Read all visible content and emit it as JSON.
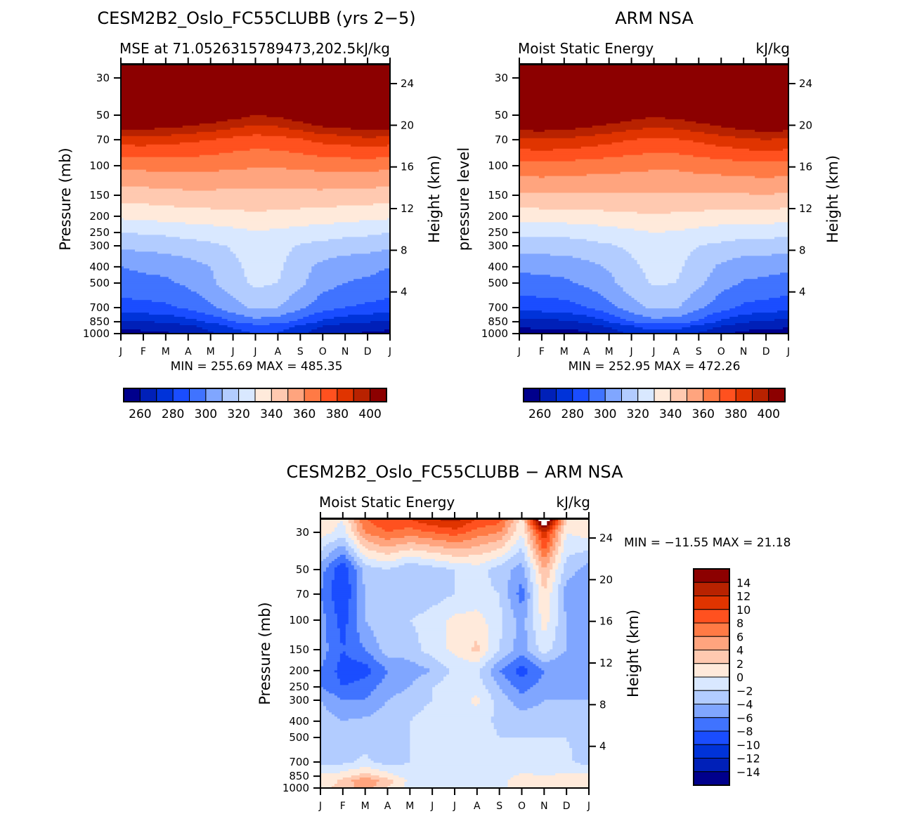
{
  "chart_data": [
    {
      "id": "model",
      "type": "heatmap",
      "title": "CESM2B2_Oslo_FC55CLUBB (yrs 2−5)",
      "subtitle_left": "MSE at 71.0526315789473,202.5",
      "subtitle_right": "kJ/kg",
      "ylabel": "Pressure (mb)",
      "ylabel_right": "Height (km)",
      "x_ticks": [
        "J",
        "F",
        "M",
        "A",
        "M",
        "J",
        "J",
        "A",
        "S",
        "O",
        "N",
        "D",
        "J"
      ],
      "y_ticks": [
        30,
        50,
        70,
        100,
        150,
        200,
        250,
        300,
        400,
        500,
        700,
        850,
        1000
      ],
      "y_right_ticks": [
        24,
        20,
        16,
        12,
        8,
        4
      ],
      "ylim_mb": [
        1000,
        25
      ],
      "stats": "MIN = 255.69 MAX = 485.35",
      "colorbar": {
        "orientation": "horizontal",
        "labels": [
          "260",
          "280",
          "300",
          "320",
          "340",
          "360",
          "380",
          "400"
        ],
        "levels": [
          260,
          270,
          280,
          290,
          300,
          310,
          320,
          330,
          340,
          350,
          360,
          370,
          380,
          390,
          400
        ]
      },
      "levels_mb": [
        1000,
        900,
        850,
        700,
        500,
        400,
        300,
        250,
        200,
        150,
        100,
        70,
        50,
        30,
        25
      ],
      "values": [
        [
          258,
          262,
          268,
          286,
          296,
          300,
          312,
          320,
          332,
          344,
          362,
          385,
          420,
          470,
          480
        ],
        [
          258,
          263,
          270,
          287,
          297,
          302,
          313,
          321,
          333,
          345,
          363,
          385,
          420,
          470,
          480
        ],
        [
          259,
          264,
          271,
          288,
          298,
          303,
          314,
          322,
          334,
          346,
          364,
          384,
          418,
          468,
          478
        ],
        [
          262,
          268,
          276,
          292,
          302,
          306,
          316,
          324,
          335,
          347,
          364,
          382,
          414,
          466,
          476
        ],
        [
          268,
          274,
          282,
          298,
          308,
          310,
          318,
          325,
          336,
          347,
          363,
          380,
          410,
          462,
          474
        ],
        [
          276,
          282,
          290,
          306,
          316,
          318,
          321,
          327,
          337,
          347,
          362,
          377,
          405,
          458,
          472
        ],
        [
          280,
          287,
          296,
          312,
          322,
          323,
          324,
          329,
          338,
          347,
          361,
          375,
          400,
          455,
          470
        ],
        [
          279,
          286,
          294,
          310,
          320,
          322,
          323,
          328,
          337,
          347,
          361,
          376,
          402,
          456,
          470
        ],
        [
          272,
          278,
          287,
          302,
          312,
          314,
          319,
          326,
          336,
          347,
          362,
          379,
          408,
          460,
          472
        ],
        [
          264,
          270,
          278,
          294,
          304,
          307,
          317,
          325,
          335,
          347,
          363,
          383,
          415,
          465,
          476
        ],
        [
          260,
          266,
          273,
          290,
          300,
          304,
          315,
          323,
          334,
          346,
          364,
          384,
          418,
          468,
          478
        ],
        [
          259,
          264,
          271,
          288,
          298,
          303,
          314,
          322,
          333,
          346,
          364,
          387,
          422,
          470,
          480
        ],
        [
          258,
          262,
          268,
          286,
          296,
          300,
          312,
          320,
          332,
          344,
          362,
          385,
          420,
          470,
          480
        ]
      ]
    },
    {
      "id": "obs",
      "type": "heatmap",
      "title": "ARM NSA",
      "subtitle_left": "Moist Static Energy",
      "subtitle_right": "kJ/kg",
      "ylabel": "pressure level",
      "ylabel_right": "Height (km)",
      "x_ticks": [
        "J",
        "F",
        "M",
        "A",
        "M",
        "J",
        "J",
        "A",
        "S",
        "O",
        "N",
        "D",
        "J"
      ],
      "y_ticks": [
        30,
        50,
        70,
        100,
        150,
        200,
        250,
        300,
        400,
        500,
        700,
        850,
        1000
      ],
      "y_right_ticks": [
        24,
        20,
        16,
        12,
        8,
        4
      ],
      "ylim_mb": [
        1000,
        25
      ],
      "stats": "MIN = 252.95 MAX = 472.26",
      "colorbar": {
        "orientation": "horizontal",
        "labels": [
          "260",
          "280",
          "300",
          "320",
          "340",
          "360",
          "380",
          "400"
        ],
        "levels": [
          260,
          270,
          280,
          290,
          300,
          310,
          320,
          330,
          340,
          350,
          360,
          370,
          380,
          390,
          400
        ]
      },
      "levels_mb": [
        1000,
        900,
        850,
        700,
        500,
        400,
        300,
        250,
        200,
        150,
        100,
        70,
        50,
        30,
        25
      ],
      "values": [
        [
          254,
          262,
          266,
          284,
          296,
          302,
          314,
          322,
          334,
          348,
          366,
          388,
          420,
          465,
          472
        ],
        [
          255,
          263,
          267,
          285,
          297,
          303,
          315,
          323,
          335,
          349,
          367,
          389,
          420,
          465,
          472
        ],
        [
          255,
          263,
          268,
          286,
          298,
          304,
          315,
          323,
          335,
          349,
          366,
          388,
          418,
          463,
          470
        ],
        [
          258,
          266,
          272,
          290,
          302,
          307,
          317,
          324,
          336,
          349,
          365,
          386,
          414,
          460,
          468
        ],
        [
          264,
          272,
          280,
          297,
          307,
          311,
          319,
          326,
          337,
          349,
          364,
          383,
          410,
          458,
          466
        ],
        [
          272,
          280,
          290,
          306,
          316,
          318,
          322,
          328,
          338,
          349,
          363,
          380,
          405,
          455,
          464
        ],
        [
          276,
          285,
          296,
          312,
          321,
          323,
          325,
          330,
          339,
          349,
          362,
          378,
          402,
          453,
          462
        ],
        [
          276,
          285,
          295,
          311,
          320,
          322,
          324,
          329,
          338,
          349,
          362,
          379,
          404,
          454,
          463
        ],
        [
          269,
          278,
          288,
          302,
          312,
          315,
          320,
          327,
          337,
          349,
          364,
          382,
          408,
          457,
          465
        ],
        [
          262,
          270,
          278,
          294,
          304,
          308,
          318,
          325,
          336,
          349,
          365,
          385,
          413,
          461,
          468
        ],
        [
          257,
          265,
          271,
          288,
          299,
          304,
          316,
          324,
          335,
          349,
          366,
          388,
          418,
          464,
          471
        ],
        [
          256,
          264,
          269,
          286,
          298,
          303,
          316,
          324,
          336,
          350,
          367,
          390,
          421,
          466,
          472
        ],
        [
          254,
          262,
          266,
          284,
          296,
          302,
          314,
          322,
          334,
          348,
          366,
          388,
          420,
          465,
          472
        ]
      ]
    },
    {
      "id": "diff",
      "type": "heatmap",
      "title": "CESM2B2_Oslo_FC55CLUBB − ARM NSA",
      "subtitle_left": "Moist Static Energy",
      "subtitle_right": "kJ/kg",
      "ylabel": "Pressure (mb)",
      "ylabel_right": "Height (km)",
      "x_ticks": [
        "J",
        "F",
        "M",
        "A",
        "M",
        "J",
        "J",
        "A",
        "S",
        "O",
        "N",
        "D",
        "J"
      ],
      "y_ticks": [
        30,
        50,
        70,
        100,
        150,
        200,
        250,
        300,
        400,
        500,
        700,
        850,
        1000
      ],
      "y_right_ticks": [
        24,
        20,
        16,
        12,
        8,
        4
      ],
      "ylim_mb": [
        1000,
        25
      ],
      "stats": "MIN = −11.55 MAX =  21.18",
      "colorbar": {
        "orientation": "vertical",
        "labels": [
          "14",
          "12",
          "10",
          "8",
          "6",
          "4",
          "2",
          "0",
          "−2",
          "−4",
          "−6",
          "−8",
          "−10",
          "−12",
          "−14"
        ],
        "levels": [
          -14,
          -12,
          -10,
          -8,
          -6,
          -4,
          -2,
          0,
          2,
          4,
          6,
          8,
          10,
          12,
          14
        ]
      },
      "levels_mb": [
        1000,
        900,
        850,
        700,
        500,
        400,
        300,
        250,
        200,
        150,
        100,
        70,
        50,
        30,
        25
      ],
      "values": [
        [
          1,
          0,
          0.5,
          -3,
          -3,
          -3,
          -4,
          -6,
          -6,
          -5,
          -5,
          -6,
          -5,
          1,
          2
        ],
        [
          3,
          2.5,
          1,
          -2.5,
          -3,
          -4,
          -6,
          -8,
          -9,
          -8,
          -9,
          -10,
          -10,
          -1,
          0
        ],
        [
          5,
          6,
          3,
          -1.5,
          -3,
          -3.5,
          -6,
          -7,
          -9,
          -6,
          -4,
          -4,
          -3,
          6,
          8
        ],
        [
          2,
          3,
          1,
          -3,
          -3.5,
          -3,
          -4,
          -5,
          -6,
          -3,
          -2,
          -2,
          -2,
          8,
          10
        ],
        [
          -1,
          -0.5,
          -1,
          -2,
          -2,
          -2,
          -3,
          -4,
          -5,
          -3,
          -2,
          -4,
          -4,
          7,
          10
        ],
        [
          -1.5,
          -1.5,
          -2,
          -1.5,
          -1,
          -1,
          -2,
          -2,
          -4,
          -1,
          -1,
          -3,
          -3,
          8,
          12
        ],
        [
          -2,
          -2,
          -2,
          -1,
          -1,
          -1.5,
          -1,
          -0.5,
          -1.5,
          0.5,
          0.5,
          -2,
          -2,
          9,
          13
        ],
        [
          -2,
          -2,
          -1.5,
          -1,
          -1,
          -1,
          0.5,
          -1,
          -1.5,
          2.5,
          1,
          -1.5,
          -1,
          7,
          10
        ],
        [
          -1,
          -1,
          -1,
          -1.5,
          -2,
          -2.5,
          -3,
          -4,
          -6,
          -2,
          -1.5,
          -2,
          -3,
          6,
          9
        ],
        [
          2,
          1.5,
          0.5,
          -2,
          -2,
          -3,
          -5,
          -7,
          -9,
          -5,
          -5,
          -7,
          -5,
          0,
          1
        ],
        [
          1,
          0.5,
          0,
          -1.5,
          -2,
          -3,
          -4,
          -5,
          -6,
          -1,
          1,
          2,
          4,
          12,
          22
        ],
        [
          0,
          1,
          0.5,
          -1.5,
          -2,
          -3,
          -4,
          -5,
          -6,
          -4,
          -4,
          -5,
          -3,
          0,
          2
        ],
        [
          1,
          0,
          0.5,
          -3,
          -3,
          -3,
          -4,
          -6,
          -6,
          -5,
          -5,
          -6,
          -5,
          1,
          2
        ]
      ]
    }
  ],
  "palette": [
    "#00008c",
    "#0020b8",
    "#0033d9",
    "#1a4dff",
    "#4073ff",
    "#80a6ff",
    "#b2ccff",
    "#d9e8ff",
    "#ffeadb",
    "#ffc9b0",
    "#ffa47e",
    "#ff7a45",
    "#ff511f",
    "#e03400",
    "#b82200",
    "#8c0000"
  ]
}
